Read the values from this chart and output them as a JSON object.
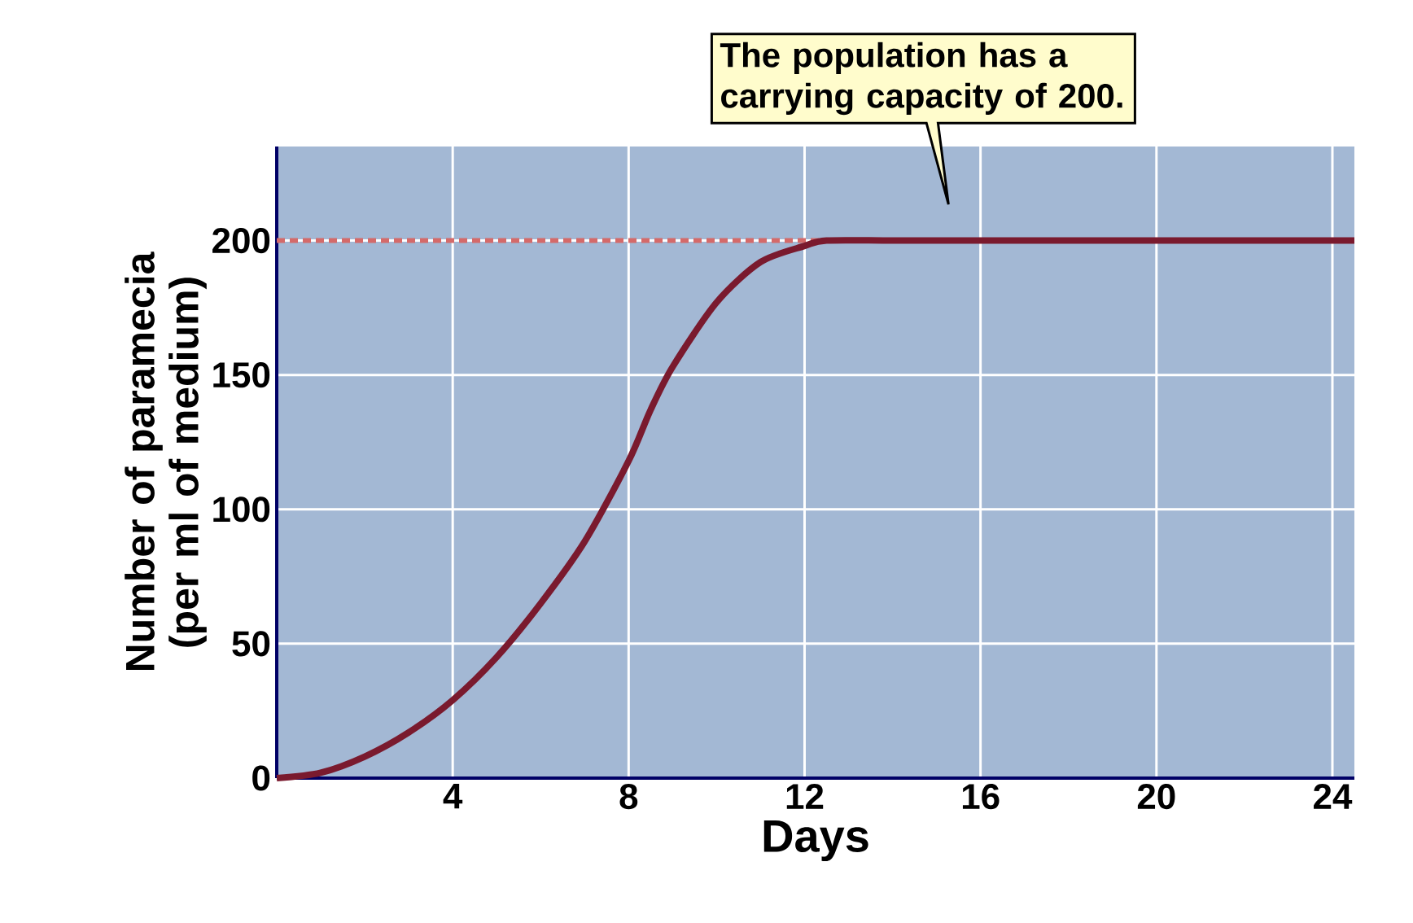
{
  "chart_data": {
    "type": "line",
    "xlabel": "Days",
    "ylabel": "Number of paramecia (per ml of medium)",
    "x": [
      0,
      1,
      2,
      3,
      4,
      5,
      6,
      7,
      8,
      8.5,
      9,
      10,
      11,
      12,
      12.5,
      14,
      16,
      18,
      20,
      22,
      24,
      24.5
    ],
    "series": [
      {
        "color": "#7a1a2e",
        "values": [
          0,
          2,
          8,
          17,
          29,
          45,
          65,
          88,
          118,
          137,
          153,
          177,
          192,
          198,
          200,
          200,
          200,
          200,
          200,
          200,
          200,
          200
        ]
      }
    ],
    "xlim": [
      0,
      24.5
    ],
    "ylim": [
      0,
      235
    ],
    "xticks": [
      4,
      8,
      12,
      16,
      20,
      24
    ],
    "yticks": [
      0,
      50,
      100,
      150,
      200
    ],
    "grid": true,
    "marker": "none",
    "line_style": "solid",
    "ref_lines": [
      {
        "axis": "y",
        "value": 200,
        "color": "#d46a6a",
        "line_style": "dashed"
      }
    ],
    "annotations": [
      "The population has a carrying capacity of 200."
    ]
  }
}
